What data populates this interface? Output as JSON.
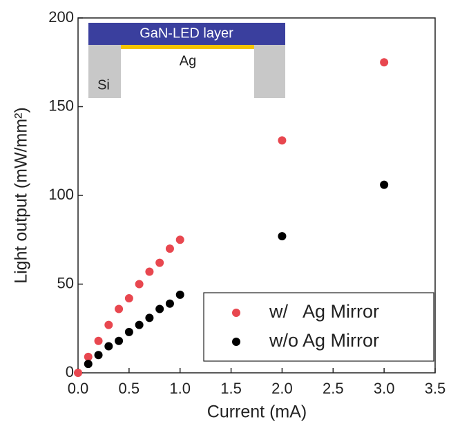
{
  "chart_data": {
    "type": "scatter",
    "x_label": "Current (mA)",
    "y_label": "Light output (mW/mm²)",
    "inset": {
      "layer": "GaN-LED layer",
      "mirror": "Ag",
      "substrate": "Si"
    },
    "series": [
      {
        "name": "w/   Ag Mirror",
        "color": "#e8474f",
        "x": [
          0,
          0.1,
          0.2,
          0.3,
          0.4,
          0.5,
          0.6,
          0.7,
          0.8,
          0.9,
          1.0,
          2.0,
          3.0
        ],
        "values": [
          0,
          9,
          18,
          27,
          36,
          42,
          50,
          57,
          62,
          70,
          75,
          131,
          175
        ]
      },
      {
        "name": "w/o Ag Mirror",
        "color": "#000000",
        "x": [
          0.1,
          0.2,
          0.3,
          0.4,
          0.5,
          0.6,
          0.7,
          0.8,
          0.9,
          1.0,
          2.0,
          3.0
        ],
        "values": [
          5,
          10,
          15,
          18,
          23,
          27,
          31,
          36,
          39,
          44,
          77,
          106
        ]
      }
    ],
    "xlim": [
      0,
      3.5
    ],
    "xticks": [
      {
        "value": 0,
        "label": "0.0"
      },
      0.5,
      {
        "value": 1,
        "label": "1.0"
      },
      1.5,
      {
        "value": 2,
        "label": "2.0"
      },
      2.5,
      {
        "value": 3,
        "label": "3.0"
      },
      3.5
    ],
    "ylim": [
      0,
      200
    ],
    "yticks": [
      0,
      50,
      100,
      150,
      200
    ],
    "legend": "lower right"
  }
}
